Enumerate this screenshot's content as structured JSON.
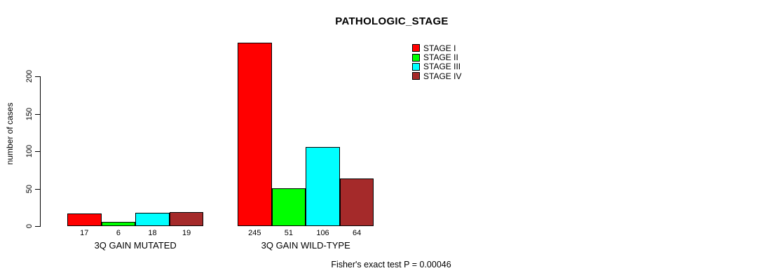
{
  "chart_data": {
    "type": "bar",
    "title": "PATHOLOGIC_STAGE",
    "ylabel": "number of cases",
    "xlabel": "",
    "ylim": [
      0,
      245
    ],
    "yticks": [
      0,
      50,
      100,
      150,
      200
    ],
    "grid": false,
    "legend_position": "top-right",
    "categories": [
      "3Q GAIN MUTATED",
      "3Q GAIN WILD-TYPE"
    ],
    "series": [
      {
        "name": "STAGE I",
        "color": "#FF0000",
        "values": [
          17,
          245
        ]
      },
      {
        "name": "STAGE II",
        "color": "#00FF00",
        "values": [
          6,
          51
        ]
      },
      {
        "name": "STAGE III",
        "color": "#00FFFF",
        "values": [
          18,
          106
        ]
      },
      {
        "name": "STAGE IV",
        "color": "#A52A2A",
        "values": [
          19,
          64
        ]
      }
    ],
    "bar_value_labels": [
      [
        "17",
        "6",
        "18",
        "19"
      ],
      [
        "245",
        "51",
        "106",
        "64"
      ]
    ],
    "footnote": "Fisher's exact test P = 0.00046"
  }
}
